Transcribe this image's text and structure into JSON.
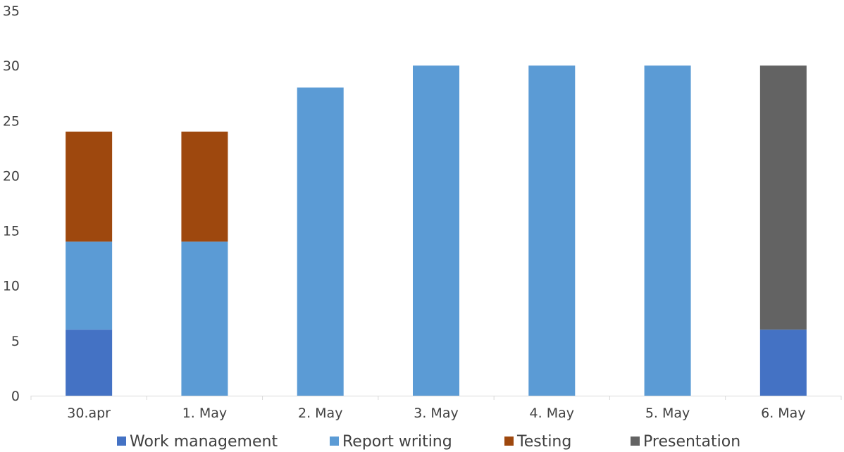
{
  "chart_data": {
    "type": "bar",
    "stacked": true,
    "categories": [
      "30.apr",
      "1. May",
      "2. May",
      "3. May",
      "4. May",
      "5. May",
      "6. May"
    ],
    "series": [
      {
        "name": "Work management",
        "color": "#4472c4",
        "values": [
          6,
          0,
          0,
          0,
          0,
          0,
          6
        ]
      },
      {
        "name": "Report writing",
        "color": "#5b9bd5",
        "values": [
          8,
          14,
          28,
          30,
          30,
          30,
          0
        ]
      },
      {
        "name": "Testing",
        "color": "#9e480e",
        "values": [
          10,
          10,
          0,
          0,
          0,
          0,
          0
        ]
      },
      {
        "name": "Presentation",
        "color": "#636363",
        "values": [
          0,
          0,
          0,
          0,
          0,
          0,
          24
        ]
      }
    ],
    "ylim": [
      0,
      35
    ],
    "yticks": [
      0,
      5,
      10,
      15,
      20,
      25,
      30,
      35
    ],
    "grid": false,
    "legend": "bottom",
    "title": "",
    "xlabel": "",
    "ylabel": ""
  }
}
